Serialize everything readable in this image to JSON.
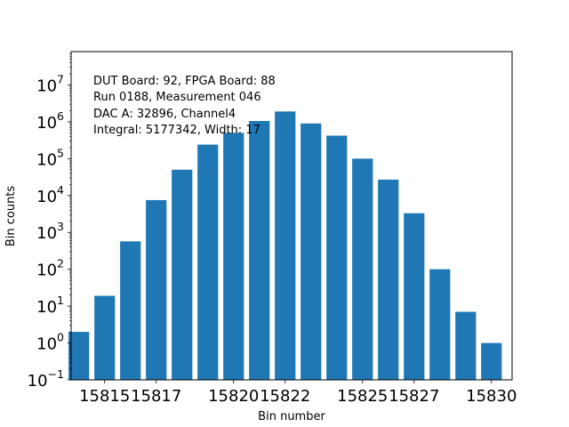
{
  "chart_data": {
    "type": "bar",
    "title": "",
    "xlabel": "Bin number",
    "ylabel": "Bin counts",
    "yscale": "log",
    "ylim": [
      0.1,
      80000000
    ],
    "xlim": [
      15813.7,
      15830.8
    ],
    "categories": [
      15814,
      15815,
      15816,
      15817,
      15818,
      15819,
      15820,
      15821,
      15822,
      15823,
      15824,
      15825,
      15826,
      15827,
      15828,
      15829,
      15830
    ],
    "values": [
      2,
      19,
      570,
      7500,
      50000,
      240000,
      500000,
      1050000,
      1900000,
      900000,
      420000,
      100000,
      27000,
      3300,
      100,
      7,
      1
    ],
    "bar_color": "#1f77b4",
    "xticks": [
      {
        "value": 15815,
        "label": "15815"
      },
      {
        "value": 15817,
        "label": "15817"
      },
      {
        "value": 15820,
        "label": "15820"
      },
      {
        "value": 15822,
        "label": "15822"
      },
      {
        "value": 15825,
        "label": "15825"
      },
      {
        "value": 15827,
        "label": "15827"
      },
      {
        "value": 15830,
        "label": "15830"
      }
    ],
    "yticks": [
      {
        "value": 0.1,
        "base": "10",
        "exp": "−1"
      },
      {
        "value": 1,
        "base": "10",
        "exp": "0"
      },
      {
        "value": 10,
        "base": "10",
        "exp": "1"
      },
      {
        "value": 100,
        "base": "10",
        "exp": "2"
      },
      {
        "value": 1000,
        "base": "10",
        "exp": "3"
      },
      {
        "value": 10000,
        "base": "10",
        "exp": "4"
      },
      {
        "value": 100000,
        "base": "10",
        "exp": "5"
      },
      {
        "value": 1000000,
        "base": "10",
        "exp": "6"
      },
      {
        "value": 10000000,
        "base": "10",
        "exp": "7"
      }
    ],
    "annotations": [
      "DUT Board: 92, FPGA Board: 88",
      "Run 0188, Measurement 046",
      "DAC A: 32896, Channel4",
      "Integral: 5177342, Width: 17"
    ]
  }
}
